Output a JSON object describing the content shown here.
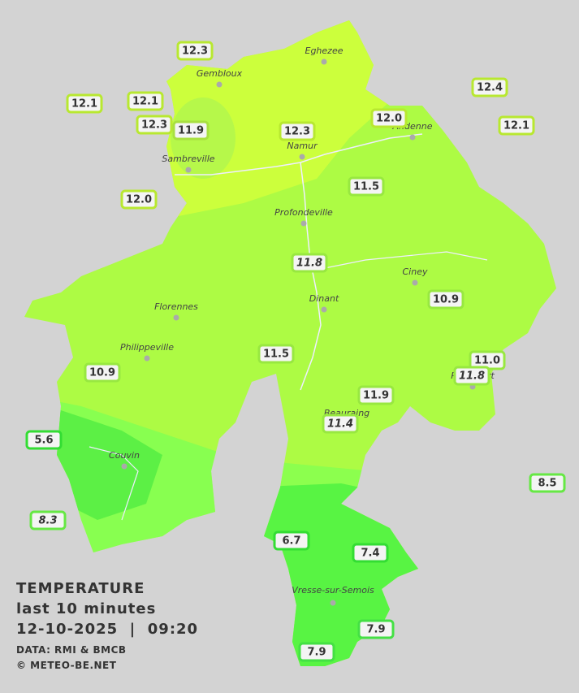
{
  "title": {
    "line1": "TEMPERATURE",
    "line2": "last 10 minutes",
    "line3": "12-10-2025  |  09:20",
    "source": "DATA: RMI & BMCB",
    "copyright": "© METEO-BE.NET"
  },
  "towns": [
    {
      "name": "Eghezee"
    },
    {
      "name": "Gembloux"
    },
    {
      "name": "Andenne"
    },
    {
      "name": "Namur"
    },
    {
      "name": "Sambreville"
    },
    {
      "name": "Profondeville"
    },
    {
      "name": "Ciney"
    },
    {
      "name": "Dinant"
    },
    {
      "name": "Florennes"
    },
    {
      "name": "Philippeville"
    },
    {
      "name": "Rochefort"
    },
    {
      "name": "Beauraing"
    },
    {
      "name": "Couvin"
    },
    {
      "name": "Vresse-sur-Semois"
    }
  ],
  "stations": [
    {
      "label": "12.3",
      "italic": false
    },
    {
      "label": "12.1",
      "italic": false
    },
    {
      "label": "12.1",
      "italic": false
    },
    {
      "label": "12.3",
      "italic": false
    },
    {
      "label": "11.9",
      "italic": false
    },
    {
      "label": "12.3",
      "italic": false
    },
    {
      "label": "12.0",
      "italic": false
    },
    {
      "label": "12.4",
      "italic": false
    },
    {
      "label": "12.1",
      "italic": false
    },
    {
      "label": "12.0",
      "italic": false
    },
    {
      "label": "11.5",
      "italic": false
    },
    {
      "label": "11.8",
      "italic": true
    },
    {
      "label": "10.9",
      "italic": false
    },
    {
      "label": "11.5",
      "italic": false
    },
    {
      "label": "11.0",
      "italic": false
    },
    {
      "label": "11.8",
      "italic": true
    },
    {
      "label": "10.9",
      "italic": false
    },
    {
      "label": "11.9",
      "italic": false
    },
    {
      "label": "11.4",
      "italic": true
    },
    {
      "label": "5.6",
      "italic": false
    },
    {
      "label": "8.5",
      "italic": false
    },
    {
      "label": "8.3",
      "italic": true
    },
    {
      "label": "6.7",
      "italic": false
    },
    {
      "label": "7.4",
      "italic": false
    },
    {
      "label": "7.9",
      "italic": false
    },
    {
      "label": "7.9",
      "italic": false
    }
  ]
}
